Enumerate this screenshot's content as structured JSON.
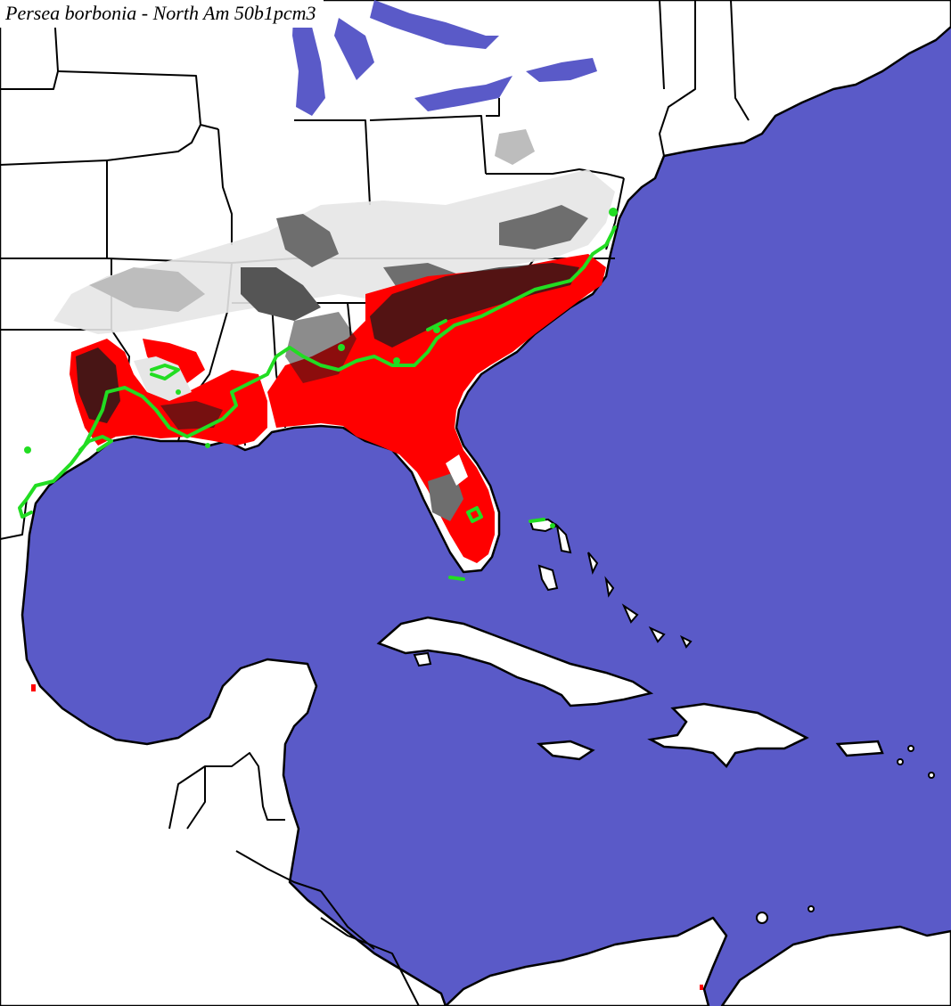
{
  "title": "Persea borbonia - North Am 50b1pcm3",
  "colors": {
    "water": "#5a5ac8",
    "land": "#ffffff",
    "borders": "#000000",
    "suitable_range": "#ff0000",
    "suitable_dense": "#1a1a1a",
    "marginal_gray": "#6e6e6e",
    "marginal_light": "#bdbdbd",
    "range_outline": "#22dd22"
  },
  "layers": [
    "water",
    "land",
    "state-borders",
    "country-borders",
    "suitability-shading",
    "observed-range-outline"
  ]
}
